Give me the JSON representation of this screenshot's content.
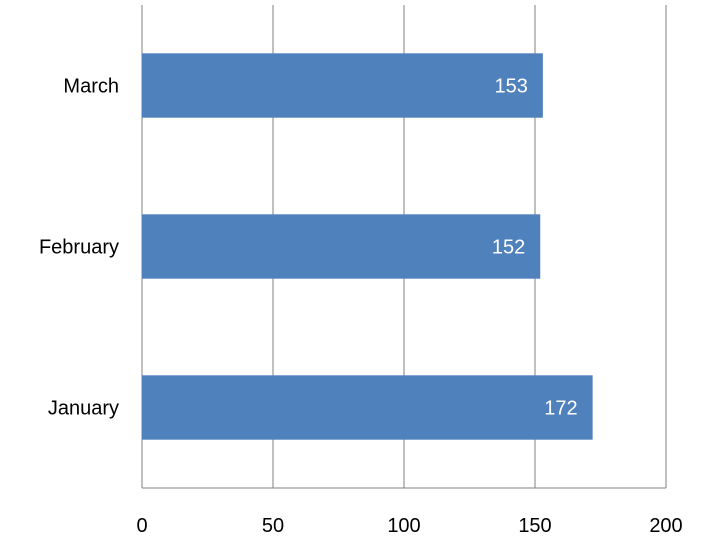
{
  "chart_data": {
    "type": "bar",
    "orientation": "horizontal",
    "categories": [
      "January",
      "February",
      "March"
    ],
    "values": [
      172,
      152,
      153
    ],
    "data_labels": [
      "172",
      "152",
      "153"
    ],
    "title": "",
    "xlabel": "",
    "ylabel": "",
    "xlim": [
      0,
      200
    ],
    "x_ticks": [
      "0",
      "50",
      "100",
      "150",
      "200"
    ],
    "grid": "vertical",
    "legend": "none",
    "bar_color": "#4F81BD",
    "grid_color": "#808080",
    "label_color": "#FFFFFF"
  }
}
